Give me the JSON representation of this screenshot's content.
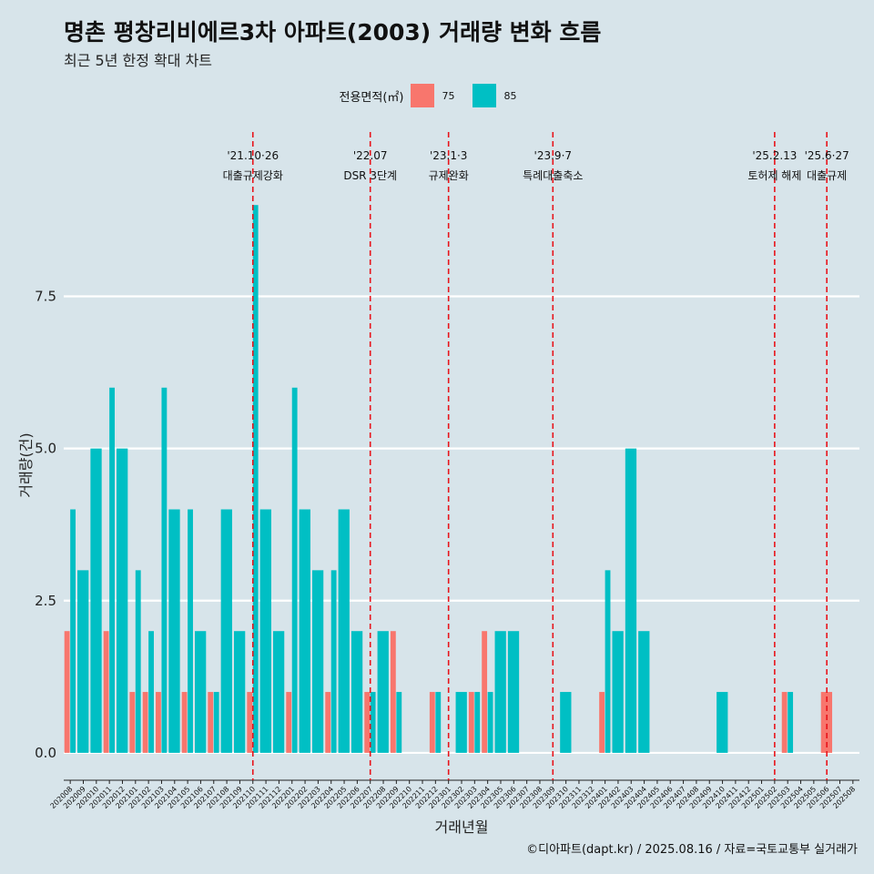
{
  "title": "명촌 평창리비에르3차 아파트(2003) 거래량 변화 흐름",
  "subtitle": "최근 5년 한정 확대 차트",
  "credit": "©디아파트(dapt.kr) / 2025.08.16 / 자료=국토교통부 실거래가",
  "legend": {
    "title": "전용면적(㎡)",
    "items": [
      {
        "label": "75",
        "color": "#f8766d"
      },
      {
        "label": "85",
        "color": "#00bfc4"
      }
    ]
  },
  "chart_data": {
    "type": "bar",
    "xlabel": "거래년월",
    "ylabel": "거래량(건)",
    "ylim": [
      -0.45,
      10.2
    ],
    "yticks": [
      "0.0",
      "2.5",
      "5.0",
      "7.5"
    ],
    "grid": true,
    "legend_position": "top",
    "categories": [
      "202008",
      "202009",
      "202010",
      "202011",
      "202012",
      "202101",
      "202102",
      "202103",
      "202104",
      "202105",
      "202106",
      "202107",
      "202108",
      "202109",
      "202110",
      "202111",
      "202112",
      "202201",
      "202202",
      "202203",
      "202204",
      "202205",
      "202206",
      "202207",
      "202208",
      "202209",
      "202210",
      "202211",
      "202212",
      "202301",
      "202302",
      "202303",
      "202304",
      "202305",
      "202306",
      "202307",
      "202308",
      "202309",
      "202310",
      "202311",
      "202312",
      "202401",
      "202402",
      "202403",
      "202404",
      "202405",
      "202406",
      "202407",
      "202408",
      "202409",
      "202410",
      "202411",
      "202412",
      "202501",
      "202502",
      "202503",
      "202504",
      "202505",
      "202506",
      "202507",
      "202508"
    ],
    "series": [
      {
        "name": "75",
        "color": "#f8766d",
        "values": [
          2,
          0,
          0,
          2,
          0,
          1,
          1,
          1,
          0,
          1,
          0,
          1,
          0,
          0,
          1,
          0,
          0,
          1,
          0,
          0,
          1,
          0,
          0,
          1,
          0,
          2,
          0,
          0,
          1,
          0,
          0,
          1,
          2,
          0,
          0,
          0,
          0,
          0,
          0,
          0,
          0,
          1,
          0,
          0,
          0,
          0,
          0,
          0,
          0,
          0,
          0,
          0,
          0,
          0,
          0,
          1,
          0,
          0,
          1,
          0,
          0
        ]
      },
      {
        "name": "85",
        "color": "#00bfc4",
        "values": [
          4,
          3,
          5,
          6,
          5,
          3,
          2,
          6,
          4,
          4,
          2,
          1,
          4,
          2,
          9,
          4,
          2,
          6,
          4,
          3,
          3,
          4,
          2,
          1,
          2,
          1,
          0,
          0,
          1,
          0,
          1,
          1,
          1,
          2,
          2,
          0,
          0,
          0,
          1,
          0,
          0,
          3,
          2,
          5,
          2,
          0,
          0,
          0,
          0,
          0,
          1,
          0,
          0,
          0,
          0,
          1,
          0,
          0,
          0,
          0,
          0
        ]
      }
    ],
    "annotations": [
      {
        "at": "202110",
        "line1": "'21.10·26",
        "line2": "대출규제강화"
      },
      {
        "at": "202207",
        "line1": "'22.07",
        "line2": "DSR 3단계"
      },
      {
        "at": "202301",
        "line1": "'23.1·3",
        "line2": "규제완화"
      },
      {
        "at": "202309",
        "line1": "'23.9·7",
        "line2": "특례대출축소"
      },
      {
        "at": "202502",
        "line1": "'25.2.13",
        "line2": "토허제 해제"
      },
      {
        "at": "202506",
        "line1": "'25.6·27",
        "line2": "대출규제"
      }
    ]
  }
}
